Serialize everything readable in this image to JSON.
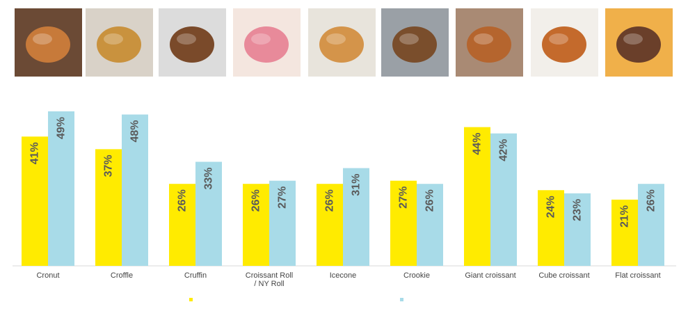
{
  "photos": [
    {
      "icon": "cronut-photo",
      "bg": "#6b4a35",
      "fg": "#c77a3a"
    },
    {
      "icon": "croffle-photo",
      "bg": "#d9d2c8",
      "fg": "#c9923e"
    },
    {
      "icon": "cruffin-photo",
      "bg": "#dcdcdc",
      "fg": "#7a4a2a"
    },
    {
      "icon": "croissant-roll-photo",
      "bg": "#f4e6df",
      "fg": "#e88a9a"
    },
    {
      "icon": "icecone-photo",
      "bg": "#e8e4dc",
      "fg": "#d4944a"
    },
    {
      "icon": "crookie-photo",
      "bg": "#9aa0a6",
      "fg": "#7a4e2c"
    },
    {
      "icon": "giant-croissant-photo",
      "bg": "#a98a74",
      "fg": "#b5652e"
    },
    {
      "icon": "cube-croissant-photo",
      "bg": "#f2efea",
      "fg": "#c46a2c"
    },
    {
      "icon": "flat-croissant-photo",
      "bg": "#f0b04a",
      "fg": "#6a3f2a"
    }
  ],
  "chart_data": {
    "type": "bar",
    "categories": [
      "Cronut",
      "Croffle",
      "Cruffin",
      "Croissant Roll\n/ NY Roll",
      "Icecone",
      "Crookie",
      "Giant croissant",
      "Cube croissant",
      "Flat croissant"
    ],
    "series": [
      {
        "values": [
          41,
          37,
          26,
          26,
          26,
          27,
          44,
          24,
          21
        ],
        "color": "#ffeb00"
      },
      {
        "values": [
          49,
          48,
          33,
          27,
          31,
          26,
          42,
          23,
          26
        ],
        "color": "#a8dbe8"
      }
    ],
    "value_suffix": "%",
    "ylim": [
      0,
      50
    ],
    "grid": false,
    "legend": "bottom-center"
  }
}
